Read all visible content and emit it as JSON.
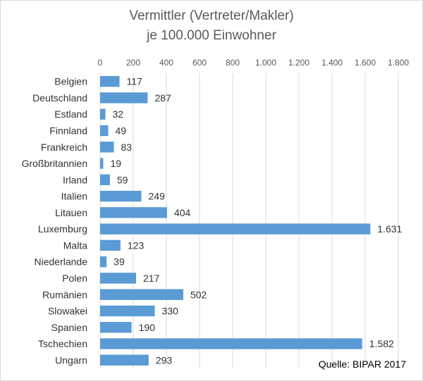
{
  "chart_data": {
    "type": "bar",
    "orientation": "horizontal",
    "title": "Vermittler (Vertreter/Makler)",
    "subtitle": "je 100.000 Einwohner",
    "xlabel": "",
    "ylabel": "",
    "xlim": [
      0,
      1800
    ],
    "ticks": [
      0,
      200,
      400,
      600,
      800,
      1000,
      1200,
      1400,
      1600,
      1800
    ],
    "tick_labels": [
      "0",
      "200",
      "400",
      "600",
      "800",
      "1.000",
      "1.200",
      "1.400",
      "1.600",
      "1.800"
    ],
    "tick_position": "top",
    "grid": true,
    "bar_color": "#5b9bd5",
    "categories": [
      "Belgien",
      "Deutschland",
      "Estland",
      "Finnland",
      "Frankreich",
      "Großbritannien",
      "Irland",
      "Italien",
      "Litauen",
      "Luxemburg",
      "Malta",
      "Niederlande",
      "Polen",
      "Rumänien",
      "Slowakei",
      "Spanien",
      "Tschechien",
      "Ungarn"
    ],
    "values": [
      117,
      287,
      32,
      49,
      83,
      19,
      59,
      249,
      404,
      1631,
      123,
      39,
      217,
      502,
      330,
      190,
      1582,
      293
    ],
    "value_labels": [
      "117",
      "287",
      "32",
      "49",
      "83",
      "19",
      "59",
      "249",
      "404",
      "1.631",
      "123",
      "39",
      "217",
      "502",
      "330",
      "190",
      "1.582",
      "293"
    ],
    "source": "Quelle: BIPAR 2017"
  }
}
